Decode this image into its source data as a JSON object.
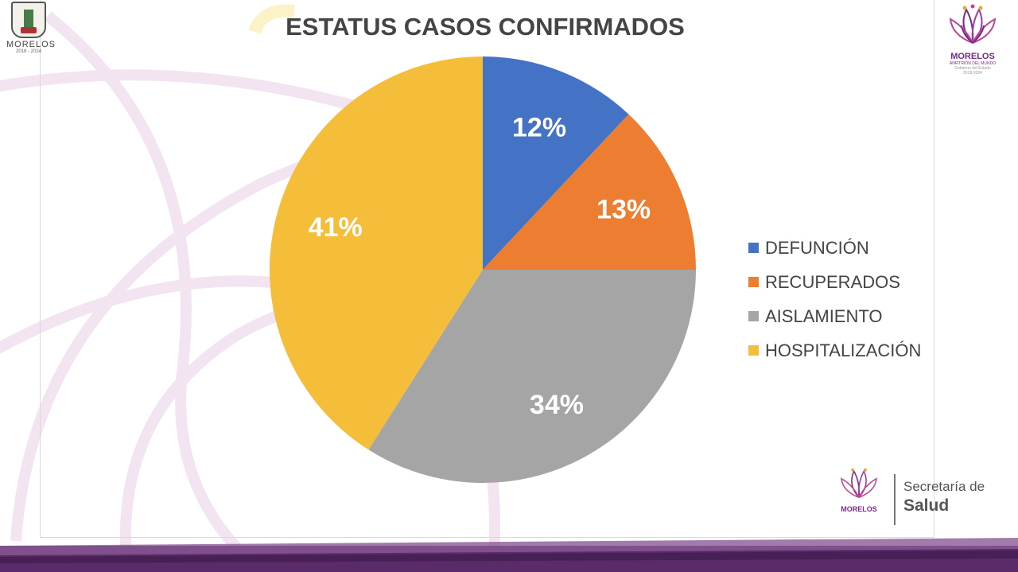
{
  "header": {
    "title": "ESTATUS CASOS CONFIRMADOS"
  },
  "state_logo": {
    "name": "MORELOS",
    "years": "2018 - 2024"
  },
  "brand_logo": {
    "name": "MORELOS",
    "tagline": "ANFITRIÓN DEL MUNDO",
    "gov": "Gobierno del Estado",
    "years": "2018-2024"
  },
  "footer_logo": {
    "brand": "MORELOS",
    "department_line1": "Secretaría de",
    "department_line2": "Salud"
  },
  "colors": {
    "purple": "#7a2a8a",
    "magenta": "#c0468f",
    "band": "#6e3a7a"
  },
  "chart_data": {
    "type": "pie",
    "title": "ESTATUS CASOS CONFIRMADOS",
    "legend_position": "right",
    "slices": [
      {
        "label": "DEFUNCIÓN",
        "value": 12,
        "display": "12%",
        "color": "#4472C4"
      },
      {
        "label": "RECUPERADOS",
        "value": 13,
        "display": "13%",
        "color": "#ED7D31"
      },
      {
        "label": "AISLAMIENTO",
        "value": 34,
        "display": "34%",
        "color": "#A5A5A5"
      },
      {
        "label": "HOSPITALIZACIÓN",
        "value": 41,
        "display": "41%",
        "color": "#F4BD3A"
      }
    ]
  }
}
